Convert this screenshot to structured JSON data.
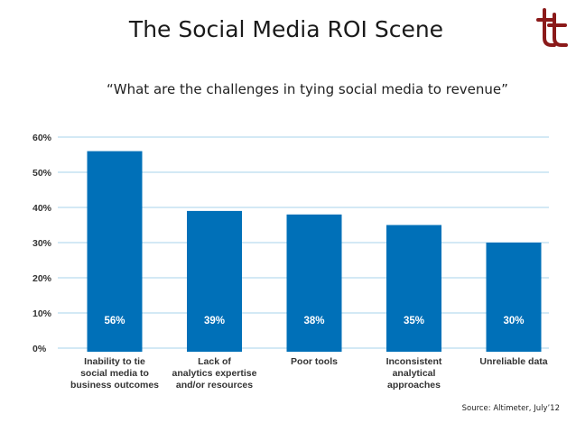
{
  "slide": {
    "title": "The Social Media ROI Scene",
    "subtitle": "“What are the challenges in tying social media to revenue”",
    "source": "Source: Altimeter, July’12",
    "logo_icon": "tt-monogram-icon",
    "accent_color": "#8b1a1a"
  },
  "chart_data": {
    "type": "bar",
    "title": "",
    "xlabel": "",
    "ylabel": "",
    "categories": [
      [
        "Inability to tie",
        "social media to",
        "business outcomes"
      ],
      [
        "Lack of",
        "analytics expertise",
        "and/or resources"
      ],
      [
        "Poor tools"
      ],
      [
        "Inconsistent",
        "analytical",
        "approaches"
      ],
      [
        "Unreliable data"
      ]
    ],
    "values": [
      56,
      39,
      38,
      35,
      30
    ],
    "value_labels": [
      "56%",
      "39%",
      "38%",
      "35%",
      "30%"
    ],
    "yticks": [
      "0%",
      "10%",
      "20%",
      "30%",
      "40%",
      "50%",
      "60%"
    ],
    "ylim": [
      0,
      60
    ],
    "grid": true,
    "bar_color": "#0070b8",
    "grid_color": "#b9dcef"
  }
}
